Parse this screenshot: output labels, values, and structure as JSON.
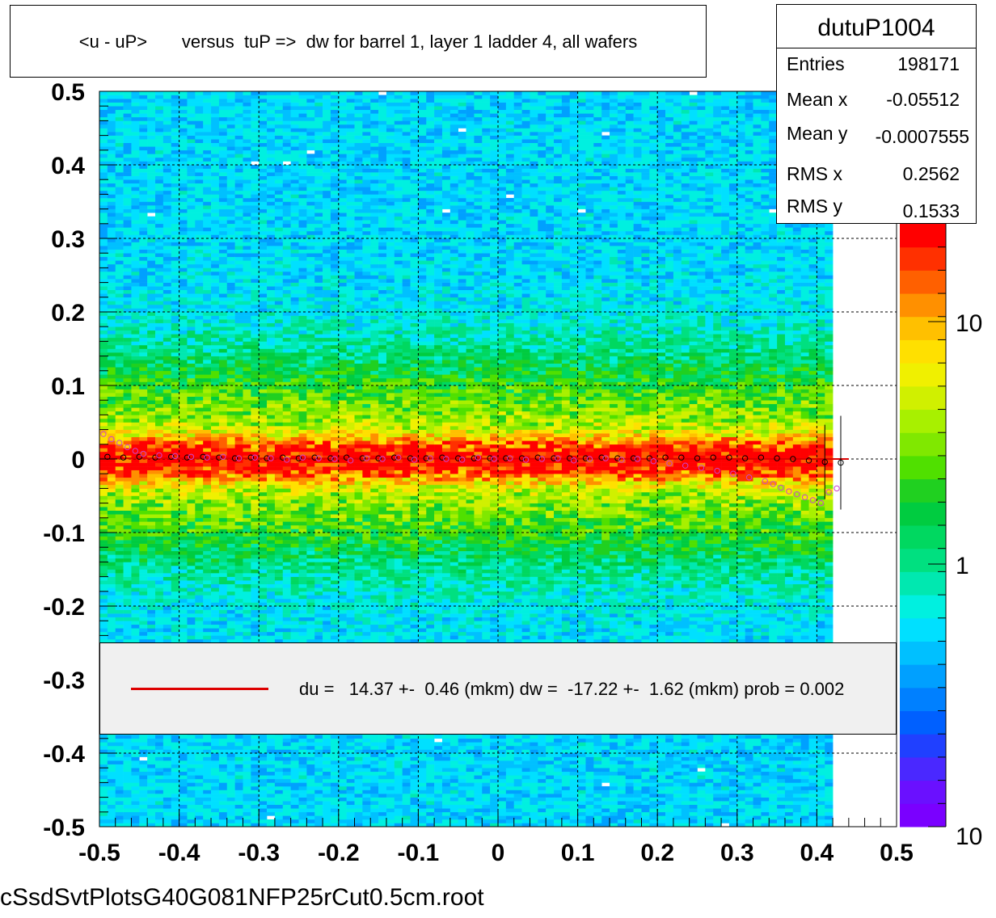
{
  "histogram": {
    "title": "<u - uP>       versus  tuP =>  dw for barrel 1, layer 1 ladder 4, all wafers",
    "name": "dutuP1004"
  },
  "stats": [
    {
      "label": "Entries",
      "value": "198171"
    },
    {
      "label": "Mean x",
      "value": "-0.05512"
    },
    {
      "label": "Mean y",
      "value": "-0.0007555"
    },
    {
      "label": "RMS x",
      "value": "0.2562"
    },
    {
      "label": "RMS y",
      "value": "0.1533"
    }
  ],
  "legend": {
    "entry": "du =   14.37 +-  0.46 (mkm) dw =  -17.22 +-  1.62 (mkm) prob = 0.002",
    "line_color": "#dd0000"
  },
  "footer": "cSsdSvtPlotsG40G081NFP25rCut0.5cm.root",
  "chart_data": {
    "type": "heatmap",
    "title": "<u - uP>       versus  tuP =>  dw for barrel 1, layer 1 ladder 4, all wafers",
    "xlim": [
      -0.5,
      0.5
    ],
    "ylim": [
      -0.5,
      0.5
    ],
    "x_ticks": [
      "-0.5",
      "-0.4",
      "-0.3",
      "-0.2",
      "-0.1",
      "0",
      "0.1",
      "0.2",
      "0.3",
      "0.4",
      "0.5"
    ],
    "y_ticks": [
      "-0.5",
      "-0.4",
      "-0.3",
      "-0.2",
      "-0.1",
      "0",
      "0.1",
      "0.2",
      "0.3",
      "0.4",
      "0.5"
    ],
    "grid": true,
    "colorbar": {
      "scale": "log",
      "labels": [
        "1",
        "10",
        "10"
      ]
    },
    "density": {
      "x_extent": [
        -0.5,
        0.42
      ],
      "band_center_y": 0.0,
      "band_sigma": 0.018,
      "core_fraction": 0.7,
      "background_fraction": 0.3
    },
    "series": [
      {
        "name": "mean",
        "marker": "open-circle",
        "color": "#000000",
        "x": [
          -0.49,
          -0.47,
          -0.45,
          -0.43,
          -0.41,
          -0.39,
          -0.37,
          -0.35,
          -0.33,
          -0.31,
          -0.29,
          -0.27,
          -0.25,
          -0.23,
          -0.21,
          -0.19,
          -0.17,
          -0.15,
          -0.13,
          -0.11,
          -0.09,
          -0.07,
          -0.05,
          -0.03,
          -0.01,
          0.01,
          0.03,
          0.05,
          0.07,
          0.09,
          0.11,
          0.13,
          0.15,
          0.17,
          0.19,
          0.21,
          0.23,
          0.25,
          0.27,
          0.29,
          0.31,
          0.33,
          0.35,
          0.37,
          0.39,
          0.41,
          0.43
        ],
        "y": [
          0.003,
          0.002,
          0.003,
          0.002,
          0.003,
          0.002,
          0.003,
          0.002,
          0.001,
          0.002,
          0.001,
          0.002,
          0.001,
          0.002,
          0.001,
          0.002,
          0.001,
          0.001,
          0.002,
          0.001,
          0.001,
          0.002,
          0.001,
          0.001,
          0.001,
          0.001,
          0.001,
          0.002,
          0.001,
          0.001,
          0.001,
          0.002,
          0.001,
          0.001,
          0.001,
          0.002,
          0.002,
          0.001,
          0.002,
          0.002,
          0.001,
          0.002,
          0.001,
          0.0,
          -0.002,
          -0.004,
          -0.005
        ]
      },
      {
        "name": "fit",
        "marker": "open-circle",
        "color": "#cc44cc",
        "x": [
          -0.495,
          -0.485,
          -0.475,
          -0.465,
          -0.455,
          -0.445,
          -0.425,
          -0.405,
          -0.385,
          -0.365,
          -0.345,
          -0.325,
          -0.305,
          -0.285,
          -0.265,
          -0.245,
          -0.225,
          -0.205,
          -0.185,
          -0.165,
          -0.145,
          -0.125,
          -0.105,
          -0.085,
          -0.065,
          -0.045,
          -0.025,
          -0.005,
          0.015,
          0.035,
          0.055,
          0.075,
          0.095,
          0.115,
          0.135,
          0.155,
          0.175,
          0.195,
          0.215,
          0.235,
          0.255,
          0.275,
          0.295,
          0.315,
          0.335,
          0.345,
          0.355,
          0.365,
          0.375,
          0.385,
          0.395,
          0.405,
          0.415,
          0.425
        ],
        "y": [
          0.034,
          0.027,
          0.022,
          0.016,
          0.011,
          0.007,
          0.005,
          0.004,
          0.003,
          0.002,
          0.003,
          0.001,
          0.002,
          0.001,
          -0.001,
          0.002,
          0.001,
          0.0,
          -0.002,
          0.001,
          0.0,
          0.002,
          -0.001,
          0.001,
          0.0,
          -0.001,
          0.002,
          0.0,
          0.001,
          -0.001,
          0.0,
          0.001,
          -0.002,
          0.0,
          0.001,
          -0.001,
          0.0,
          -0.003,
          -0.006,
          -0.009,
          -0.012,
          -0.016,
          -0.02,
          -0.025,
          -0.03,
          -0.034,
          -0.039,
          -0.044,
          -0.048,
          -0.052,
          -0.056,
          -0.06,
          -0.045,
          -0.04
        ]
      }
    ],
    "fit_line": {
      "x": [
        -0.5,
        0.44
      ],
      "y": [
        0.001,
        0.0
      ]
    }
  }
}
